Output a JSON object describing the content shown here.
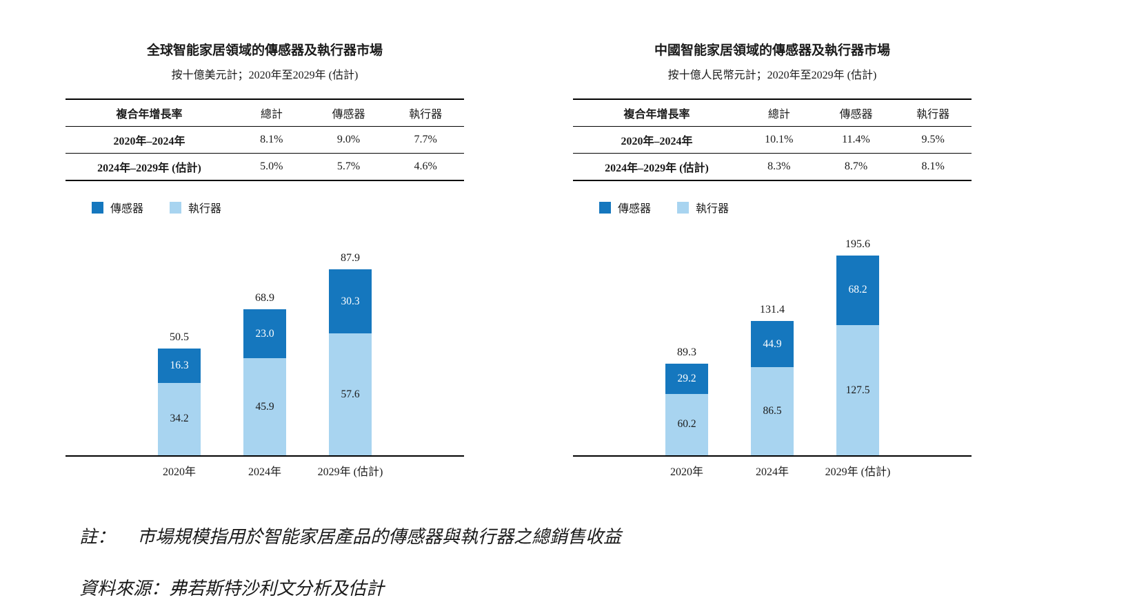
{
  "chart_data": [
    {
      "type": "bar",
      "stacked": true,
      "title": "全球智能家居領域的傳感器及執行器市場",
      "subtitle": "按十億美元計；2020年至2029年 (估計)",
      "categories": [
        "2020年",
        "2024年",
        "2029年 (估計)"
      ],
      "series": [
        {
          "name": "傳感器",
          "color": "#1577BE",
          "values": [
            16.3,
            23.0,
            30.3
          ],
          "labels": [
            "16.3",
            "23.0",
            "30.3"
          ]
        },
        {
          "name": "執行器",
          "color": "#A8D4F0",
          "values": [
            34.2,
            45.9,
            57.6
          ],
          "labels": [
            "34.2",
            "45.9",
            "57.6"
          ]
        }
      ],
      "totals": [
        50.5,
        68.9,
        87.9
      ],
      "total_labels": [
        "50.5",
        "68.9",
        "87.9"
      ],
      "legend_position": "top-left",
      "grid": false,
      "cagr_table": {
        "headers": [
          "複合年增長率",
          "總計",
          "傳感器",
          "執行器"
        ],
        "rows": [
          {
            "label": "2020年–2024年",
            "values": [
              "8.1%",
              "9.0%",
              "7.7%"
            ]
          },
          {
            "label": "2024年–2029年 (估計)",
            "values": [
              "5.0%",
              "5.7%",
              "4.6%"
            ]
          }
        ]
      }
    },
    {
      "type": "bar",
      "stacked": true,
      "title": "中國智能家居領域的傳感器及執行器市場",
      "subtitle": "按十億人民幣元計；2020年至2029年 (估計)",
      "categories": [
        "2020年",
        "2024年",
        "2029年 (估計)"
      ],
      "series": [
        {
          "name": "傳感器",
          "color": "#1577BE",
          "values": [
            29.2,
            44.9,
            68.2
          ],
          "labels": [
            "29.2",
            "44.9",
            "68.2"
          ]
        },
        {
          "name": "執行器",
          "color": "#A8D4F0",
          "values": [
            60.2,
            86.5,
            127.5
          ],
          "labels": [
            "60.2",
            "86.5",
            "127.5"
          ]
        }
      ],
      "totals": [
        89.3,
        131.4,
        195.6
      ],
      "total_labels": [
        "89.3",
        "131.4",
        "195.6"
      ],
      "legend_position": "top-left",
      "grid": false,
      "cagr_table": {
        "headers": [
          "複合年增長率",
          "總計",
          "傳感器",
          "執行器"
        ],
        "rows": [
          {
            "label": "2020年–2024年",
            "values": [
              "10.1%",
              "11.4%",
              "9.5%"
            ]
          },
          {
            "label": "2024年–2029年 (估計)",
            "values": [
              "8.3%",
              "8.7%",
              "8.1%"
            ]
          }
        ]
      }
    }
  ],
  "notes": {
    "note_label": "註：",
    "note_text": "市場規模指用於智能家居產品的傳感器與執行器之總銷售收益",
    "source_text": "資料來源：弗若斯特沙利文分析及估計"
  }
}
